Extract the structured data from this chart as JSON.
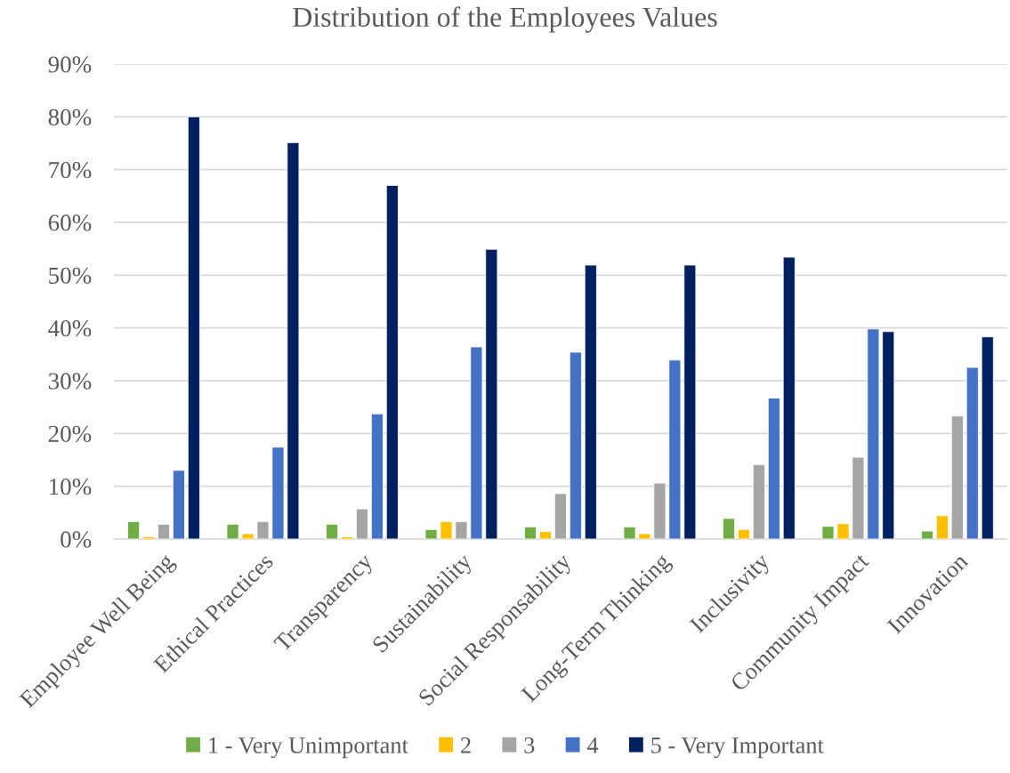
{
  "chart_data": {
    "type": "bar",
    "title": "Distribution of the Employees Values",
    "categories": [
      "Employee Well Being",
      "Ethical Practices",
      "Transparency",
      "Sustainability",
      "Social Responsability",
      "Long-Term Thinking",
      "Inclusivity",
      "Community Impact",
      "Innovation"
    ],
    "series": [
      {
        "name": "1 - Very Unimportant",
        "color": "#70ad47",
        "values": [
          3.3,
          2.8,
          2.8,
          1.8,
          2.3,
          2.3,
          3.9,
          2.4,
          1.5
        ]
      },
      {
        "name": "2",
        "color": "#ffc000",
        "values": [
          0.4,
          1.0,
          0.4,
          3.3,
          1.4,
          1.0,
          1.8,
          2.9,
          4.4
        ]
      },
      {
        "name": "3",
        "color": "#a5a5a5",
        "values": [
          2.8,
          3.3,
          5.7,
          3.3,
          8.6,
          10.6,
          14.1,
          15.5,
          23.3
        ]
      },
      {
        "name": "4",
        "color": "#4472c4",
        "values": [
          13.0,
          17.4,
          23.7,
          36.4,
          35.4,
          33.9,
          26.7,
          39.8,
          32.5
        ]
      },
      {
        "name": "5 - Very Important",
        "color": "#002060",
        "values": [
          80.0,
          75.1,
          67.0,
          54.9,
          51.9,
          51.9,
          53.4,
          39.3,
          38.3
        ]
      }
    ],
    "ylim": [
      0,
      90
    ],
    "yticks": [
      {
        "value": 0,
        "label": "0%"
      },
      {
        "value": 10,
        "label": "10%"
      },
      {
        "value": 20,
        "label": "20%"
      },
      {
        "value": 30,
        "label": "30%"
      },
      {
        "value": 40,
        "label": "40%"
      },
      {
        "value": 50,
        "label": "50%"
      },
      {
        "value": 60,
        "label": "60%"
      },
      {
        "value": 70,
        "label": "70%"
      },
      {
        "value": 80,
        "label": "80%"
      },
      {
        "value": 90,
        "label": "90%"
      }
    ],
    "grid": "y",
    "legend": "bottom"
  }
}
